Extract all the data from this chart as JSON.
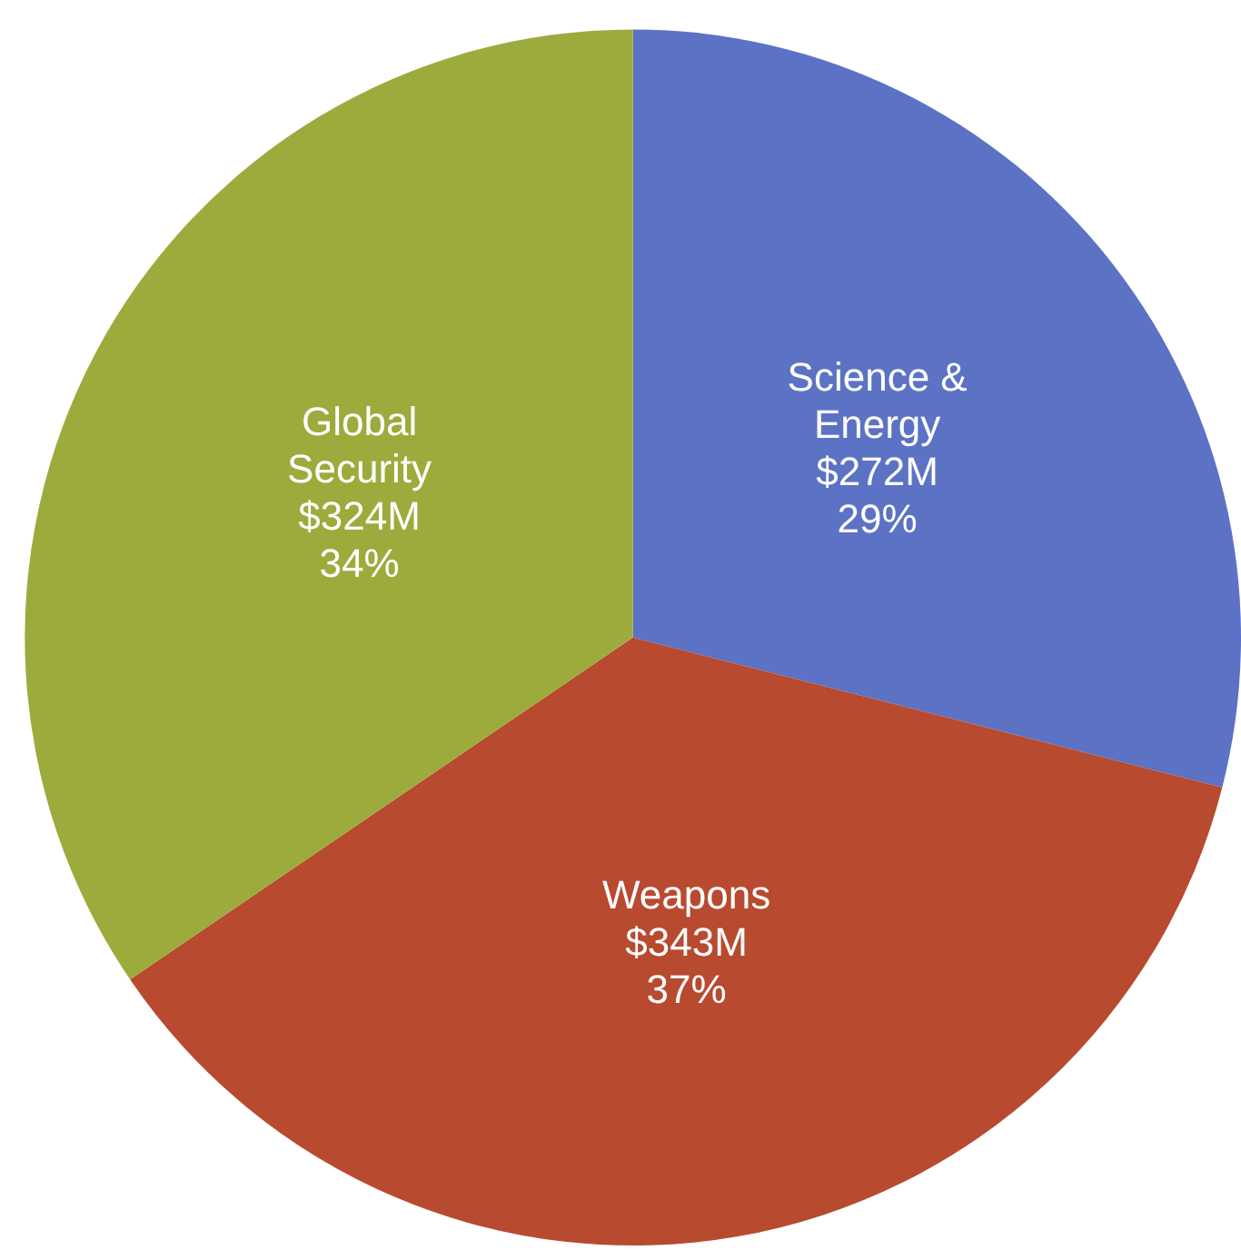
{
  "chart_data": {
    "type": "pie",
    "categories": [
      "Science &\nEnergy",
      "Weapons",
      "Global\nSecurity"
    ],
    "values": [
      272,
      343,
      324
    ],
    "value_labels": [
      "$272M",
      "$343M",
      "$324M"
    ],
    "annotations": [
      {
        "text": "29%",
        "x": "Science &\nEnergy"
      },
      {
        "text": "37%",
        "x": "Weapons"
      },
      {
        "text": "34%",
        "x": "Global\nSecurity"
      }
    ],
    "colors": [
      "#5c72c4",
      "#b84a30",
      "#9cab3c"
    ],
    "legend": false
  }
}
